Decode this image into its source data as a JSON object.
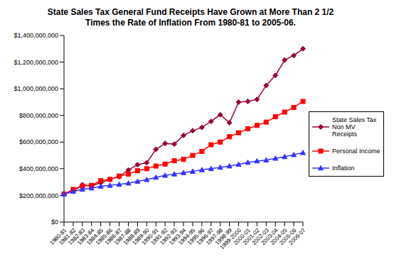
{
  "chart_data": {
    "type": "line",
    "title": "State Sales Tax General Fund Receipts Have Grown at More Than 2 1/2 Times the Rate of Inflation From 1980-81 to 2005-06.",
    "categories": [
      "1980-81",
      "1981-82",
      "1982-83",
      "1983-84",
      "1984-85",
      "1985-86",
      "1986-87",
      "1987-88",
      "1988-89",
      "1989-90",
      "1990-91",
      "1991-92",
      "1992-93",
      "1993-94",
      "1994-95",
      "1995-96",
      "1996-97",
      "1997-98",
      "1998-99",
      "1999-2000",
      "2000-01",
      "2001-02",
      "2002-03",
      "2003-04",
      "2004-05",
      "2005-06",
      "2006-07"
    ],
    "series": [
      {
        "name": "State Sales Tax Non MV Receipts",
        "color": "#990033",
        "marker": "diamond",
        "values": [
          210000000,
          230000000,
          280000000,
          270000000,
          295000000,
          320000000,
          340000000,
          390000000,
          430000000,
          445000000,
          545000000,
          590000000,
          585000000,
          650000000,
          685000000,
          710000000,
          755000000,
          805000000,
          745000000,
          900000000,
          905000000,
          920000000,
          1025000000,
          1100000000,
          1215000000,
          1250000000,
          1300000000
        ]
      },
      {
        "name": "Personal Income",
        "color": "#ff0000",
        "marker": "square",
        "values": [
          210000000,
          245000000,
          270000000,
          275000000,
          310000000,
          320000000,
          345000000,
          360000000,
          385000000,
          400000000,
          420000000,
          435000000,
          460000000,
          470000000,
          500000000,
          530000000,
          580000000,
          600000000,
          640000000,
          670000000,
          700000000,
          725000000,
          750000000,
          790000000,
          825000000,
          860000000,
          905000000
        ]
      },
      {
        "name": "Inflation",
        "color": "#3333ff",
        "marker": "triangle",
        "values": [
          210000000,
          230000000,
          245000000,
          255000000,
          268000000,
          275000000,
          282000000,
          292000000,
          305000000,
          318000000,
          335000000,
          350000000,
          360000000,
          370000000,
          380000000,
          392000000,
          400000000,
          410000000,
          420000000,
          432000000,
          447000000,
          458000000,
          465000000,
          478000000,
          490000000,
          505000000,
          520000000
        ]
      }
    ],
    "ylim": [
      0,
      1400000000
    ],
    "yticks": [
      {
        "value": 0,
        "label": "$0"
      },
      {
        "value": 200000000,
        "label": "$200,000,000"
      },
      {
        "value": 400000000,
        "label": "$400,000,000"
      },
      {
        "value": 600000000,
        "label": "$600,000,000"
      },
      {
        "value": 800000000,
        "label": "$800,000,000"
      },
      {
        "value": 1000000000,
        "label": "$1,000,000,000"
      },
      {
        "value": 1200000000,
        "label": "$1,200,000,000"
      },
      {
        "value": 1400000000,
        "label": "$1,400,000,000"
      }
    ],
    "grid": false,
    "legend": "right"
  }
}
